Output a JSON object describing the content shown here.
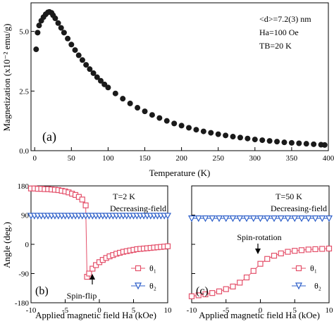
{
  "chart_data": [
    {
      "id": "a",
      "type": "scatter",
      "panel_label": "(a)",
      "xlabel": "Temperature (K)",
      "ylabel": "Magnetization (x10⁻² emu/g)",
      "xlim": [
        -5,
        400
      ],
      "ylim": [
        0,
        6.2
      ],
      "xticks": [
        0,
        50,
        100,
        150,
        200,
        250,
        300,
        350,
        400
      ],
      "xtick_labels": [
        "0",
        "50",
        "100",
        "150",
        "200",
        "250",
        "300",
        "350",
        "400"
      ],
      "yticks": [
        0.0,
        2.5,
        5.0
      ],
      "ytick_labels": [
        "0.0",
        "2.5",
        "5.0"
      ],
      "annotations": [
        "<d>=7.2(3) nm",
        "Ha=100 Oe",
        "TB=20 K"
      ],
      "series": [
        {
          "marker": "filled-circle",
          "color": "#1a1a1a",
          "x": [
            2,
            4,
            6,
            9,
            12,
            15,
            18,
            20,
            23,
            25,
            28,
            32,
            36,
            40,
            45,
            50,
            55,
            60,
            65,
            70,
            75,
            80,
            85,
            90,
            95,
            100,
            110,
            120,
            130,
            140,
            150,
            160,
            170,
            180,
            190,
            200,
            210,
            220,
            230,
            240,
            250,
            260,
            270,
            280,
            290,
            300,
            310,
            320,
            330,
            340,
            350,
            360,
            370,
            380,
            390,
            395
          ],
          "y": [
            4.25,
            4.95,
            5.25,
            5.45,
            5.6,
            5.72,
            5.8,
            5.82,
            5.78,
            5.68,
            5.55,
            5.35,
            5.15,
            4.95,
            4.7,
            4.45,
            4.22,
            4.0,
            3.8,
            3.6,
            3.42,
            3.25,
            3.08,
            2.93,
            2.78,
            2.65,
            2.4,
            2.18,
            1.98,
            1.8,
            1.65,
            1.5,
            1.37,
            1.25,
            1.14,
            1.05,
            0.96,
            0.88,
            0.81,
            0.75,
            0.69,
            0.64,
            0.59,
            0.55,
            0.51,
            0.47,
            0.44,
            0.41,
            0.38,
            0.35,
            0.33,
            0.31,
            0.29,
            0.27,
            0.25,
            0.24
          ]
        }
      ]
    },
    {
      "id": "b",
      "type": "line",
      "panel_label": "(b)",
      "xlabel": "Applied magnetic field Ha (kOe)",
      "ylabel": "Angle (deg.)",
      "xlim": [
        -10,
        10
      ],
      "ylim": [
        -180,
        180
      ],
      "xticks": [
        -10,
        -5,
        0,
        5,
        10
      ],
      "xtick_labels": [
        "-10",
        "-5",
        "0",
        "5",
        "10"
      ],
      "yticks": [
        180,
        90,
        0,
        -90,
        -180
      ],
      "ytick_labels": [
        "180",
        "90",
        "0",
        "-90",
        "-180"
      ],
      "annotations": [
        "T=2 K",
        "Decreasing-field",
        "Spin-flip"
      ],
      "legend": [
        "θ₁",
        "θ₂"
      ],
      "legend_position": "bottom-right",
      "series": [
        {
          "name": "θ₁",
          "marker": "open-square",
          "color": "#e4506a",
          "x": [
            -10,
            -9.5,
            -9,
            -8.5,
            -8,
            -7.5,
            -7,
            -6.5,
            -6,
            -5.5,
            -5,
            -4.5,
            -4,
            -3.5,
            -3,
            -2.5,
            -2,
            -1.8,
            -1.5,
            -1,
            -0.5,
            0,
            0.5,
            1,
            1.5,
            2,
            2.5,
            3,
            3.5,
            4,
            4.5,
            5,
            5.5,
            6,
            6.5,
            7,
            7.5,
            8,
            8.5,
            9,
            9.5,
            10
          ],
          "y": [
            172,
            172,
            171,
            171,
            170,
            170,
            169,
            168,
            167,
            165,
            163,
            160,
            156,
            152,
            146,
            138,
            120,
            -100,
            -90,
            -75,
            -64,
            -55,
            -48,
            -42,
            -37,
            -33,
            -29,
            -26,
            -23,
            -21,
            -19,
            -17,
            -15,
            -14,
            -13,
            -12,
            -11,
            -10,
            -9,
            -8,
            -7,
            -6
          ]
        },
        {
          "name": "θ₂",
          "marker": "open-triangle-down",
          "color": "#2d5fc9",
          "x": [
            -10,
            -9.5,
            -9,
            -8.5,
            -8,
            -7.5,
            -7,
            -6.5,
            -6,
            -5.5,
            -5,
            -4.5,
            -4,
            -3.5,
            -3,
            -2.5,
            -2,
            -1.5,
            -1,
            -0.5,
            0,
            0.5,
            1,
            1.5,
            2,
            2.5,
            3,
            3.5,
            4,
            4.5,
            5,
            5.5,
            6,
            6.5,
            7,
            7.5,
            8,
            8.5,
            9,
            9.5,
            10
          ],
          "y": [
            88,
            88,
            88,
            88,
            88,
            88,
            88,
            88,
            88,
            88,
            88,
            88,
            88,
            88,
            88,
            88,
            88,
            88,
            88,
            88,
            88,
            88,
            88,
            88,
            88,
            88,
            88,
            88,
            88,
            88,
            88,
            88,
            88,
            88,
            88,
            88,
            88,
            88,
            88,
            88,
            88
          ]
        }
      ]
    },
    {
      "id": "c",
      "type": "line",
      "panel_label": "(c)",
      "xlabel": "Applied magnetic field Ha (kOe)",
      "ylabel": "",
      "xlim": [
        -10,
        10
      ],
      "ylim": [
        -180,
        180
      ],
      "xticks": [
        -10,
        -5,
        0,
        5,
        10
      ],
      "xtick_labels": [
        "-10",
        "-5",
        "0",
        "5",
        "10"
      ],
      "yticks": [
        180,
        90,
        0,
        -90,
        -180
      ],
      "ytick_labels": [
        "",
        "",
        "",
        "",
        ""
      ],
      "annotations": [
        "T=50 K",
        "Decreasing-field",
        "Spin-rotation"
      ],
      "legend": [
        "θ₁",
        "θ₂"
      ],
      "legend_position": "bottom-right",
      "series": [
        {
          "name": "θ₁",
          "marker": "open-square",
          "color": "#e4506a",
          "x": [
            -10,
            -9,
            -8,
            -7,
            -6,
            -5,
            -4,
            -3,
            -2,
            -1,
            0,
            1,
            2,
            3,
            4,
            5,
            6,
            7,
            8,
            9,
            10
          ],
          "y": [
            -160,
            -157,
            -154,
            -150,
            -145,
            -138,
            -130,
            -118,
            -102,
            -82,
            -60,
            -45,
            -35,
            -28,
            -23,
            -20,
            -18,
            -16,
            -15,
            -14,
            -13
          ]
        },
        {
          "name": "θ₂",
          "marker": "open-triangle-down",
          "color": "#2d5fc9",
          "x": [
            -10,
            -9,
            -8,
            -7,
            -6,
            -5,
            -4,
            -3,
            -2,
            -1,
            0,
            1,
            2,
            3,
            4,
            5,
            6,
            7,
            8,
            9,
            10
          ],
          "y": [
            80,
            80,
            80,
            80,
            80,
            80,
            80,
            80,
            80,
            80,
            80,
            80,
            80,
            80,
            80,
            80,
            80,
            80,
            80,
            80,
            80
          ]
        }
      ]
    }
  ]
}
